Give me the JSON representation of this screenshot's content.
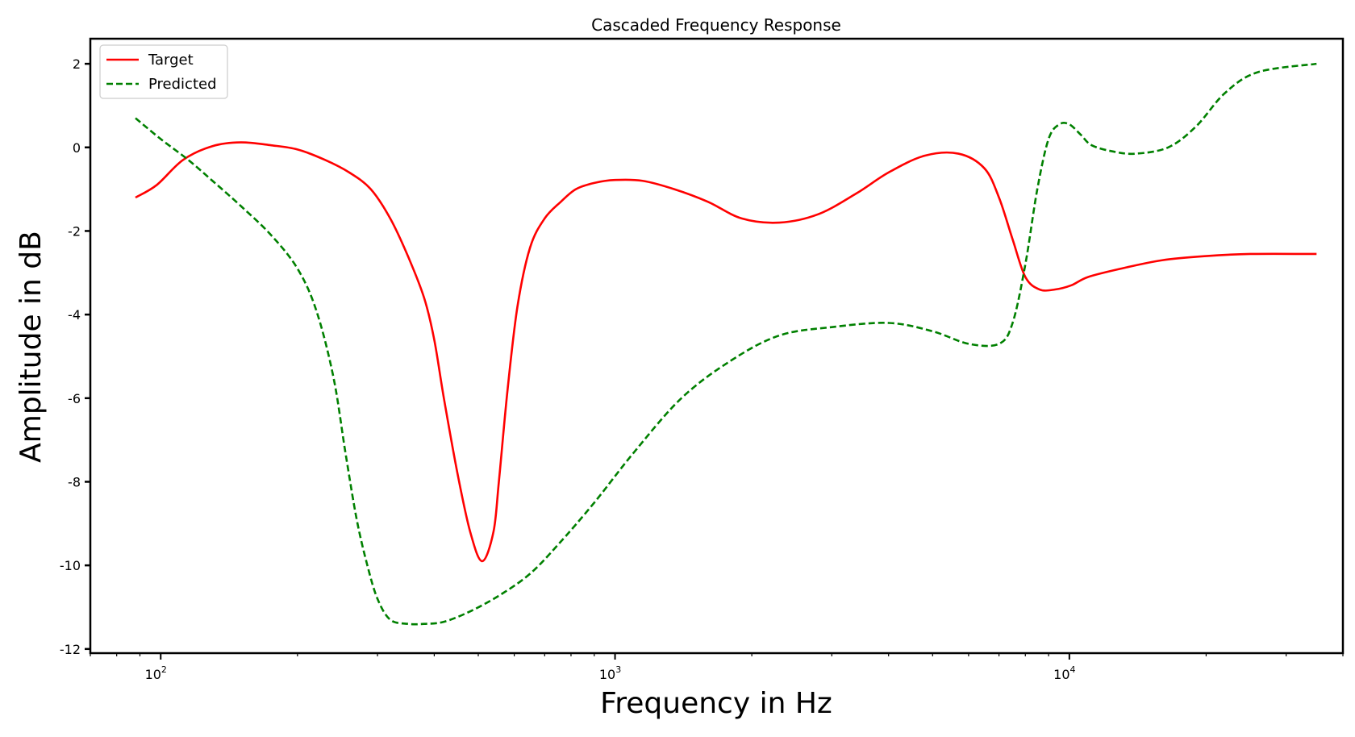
{
  "chart_data": {
    "type": "line",
    "title": "Cascaded Frequency Response",
    "xlabel": "Frequency in Hz",
    "ylabel": "Amplitude in dB",
    "xscale": "log",
    "xlim": [
      70,
      40000
    ],
    "ylim": [
      -12.1,
      2.6
    ],
    "xticks": [
      {
        "value": 100,
        "base": "10",
        "exp": "2"
      },
      {
        "value": 1000,
        "base": "10",
        "exp": "3"
      },
      {
        "value": 10000,
        "base": "10",
        "exp": "4"
      }
    ],
    "yticks": [
      {
        "value": 2,
        "label": "2"
      },
      {
        "value": 0,
        "label": "0"
      },
      {
        "value": -2,
        "label": "-2"
      },
      {
        "value": -4,
        "label": "-4"
      },
      {
        "value": -6,
        "label": "-6"
      },
      {
        "value": -8,
        "label": "-8"
      },
      {
        "value": -10,
        "label": "-10"
      },
      {
        "value": -12,
        "label": "-12"
      }
    ],
    "legend_position": "top-left",
    "series": [
      {
        "name": "Target",
        "color": "#ff0000",
        "style": "solid",
        "x": [
          88,
          98,
          112,
          130,
          150,
          175,
          200,
          230,
          260,
          290,
          320,
          350,
          380,
          400,
          420,
          450,
          480,
          510,
          540,
          555,
          580,
          610,
          650,
          700,
          760,
          820,
          900,
          1000,
          1150,
          1350,
          1600,
          1900,
          2300,
          2800,
          3400,
          4000,
          4800,
          5700,
          6500,
          7000,
          7500,
          8000,
          8600,
          9300,
          10100,
          11000,
          13000,
          16000,
          20000,
          25000,
          35000
        ],
        "y": [
          -1.2,
          -0.9,
          -0.3,
          0.03,
          0.12,
          0.05,
          -0.05,
          -0.3,
          -0.6,
          -1.0,
          -1.7,
          -2.6,
          -3.6,
          -4.6,
          -6.0,
          -7.8,
          -9.2,
          -9.9,
          -9.2,
          -8.0,
          -5.8,
          -3.8,
          -2.4,
          -1.7,
          -1.3,
          -1.0,
          -0.85,
          -0.78,
          -0.8,
          -1.0,
          -1.3,
          -1.7,
          -1.8,
          -1.6,
          -1.1,
          -0.6,
          -0.2,
          -0.15,
          -0.5,
          -1.2,
          -2.2,
          -3.1,
          -3.4,
          -3.4,
          -3.3,
          -3.1,
          -2.9,
          -2.7,
          -2.6,
          -2.55,
          -2.55
        ]
      },
      {
        "name": "Predicted",
        "color": "#008000",
        "style": "dashed",
        "x": [
          88,
          100,
          115,
          130,
          150,
          175,
          200,
          220,
          240,
          255,
          270,
          285,
          300,
          320,
          350,
          380,
          420,
          480,
          560,
          650,
          750,
          900,
          1100,
          1400,
          1800,
          2300,
          3000,
          4000,
          5000,
          6000,
          7000,
          7500,
          8000,
          8500,
          9000,
          9500,
          10000,
          10600,
          11200,
          12500,
          14000,
          16500,
          19000,
          22000,
          26000,
          35000
        ],
        "y": [
          0.7,
          0.2,
          -0.3,
          -0.8,
          -1.4,
          -2.1,
          -2.9,
          -3.9,
          -5.5,
          -7.3,
          -8.9,
          -10.0,
          -10.8,
          -11.3,
          -11.4,
          -11.4,
          -11.35,
          -11.1,
          -10.7,
          -10.2,
          -9.5,
          -8.5,
          -7.3,
          -6.0,
          -5.1,
          -4.5,
          -4.3,
          -4.2,
          -4.4,
          -4.7,
          -4.7,
          -4.2,
          -2.8,
          -1.0,
          0.2,
          0.55,
          0.55,
          0.3,
          0.05,
          -0.1,
          -0.15,
          0.0,
          0.5,
          1.3,
          1.8,
          2.0
        ]
      }
    ]
  }
}
